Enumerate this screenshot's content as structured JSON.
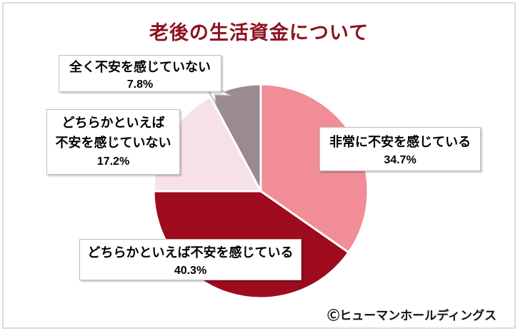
{
  "title": "老後の生活資金について",
  "copyright": "Ⓒヒューマンホールディングス",
  "colors": {
    "title_accent": "#8E1220",
    "box_border": "#BFBFBF",
    "outer_frame": "#DBDBDB",
    "slice_very_anxious": "#F08D96",
    "slice_somewhat_anxious": "#9E0B1E",
    "slice_somewhat_not_anxious": "#F6E1E7",
    "slice_not_anxious_at_all": "#9A8A91"
  },
  "callouts": [
    {
      "lines": [
        "全く不安を感じていない"
      ],
      "pct": "7.8%"
    },
    {
      "lines": [
        "どちらかといえば",
        "不安を感じていない"
      ],
      "pct": "17.2%"
    },
    {
      "lines": [
        "非常に不安を感じている"
      ],
      "pct": "34.7%"
    },
    {
      "lines": [
        "どちらかといえば不安を感じている"
      ],
      "pct": "40.3%"
    }
  ],
  "chart_data": {
    "type": "pie",
    "title": "老後の生活資金について",
    "categories": [
      "非常に不安を感じている",
      "どちらかといえば不安を感じている",
      "どちらかといえば不安を感じていない",
      "全く不安を感じていない"
    ],
    "values": [
      34.7,
      40.3,
      17.2,
      7.8
    ],
    "unit": "%",
    "colors": [
      "#F08D96",
      "#9E0B1E",
      "#F6E1E7",
      "#9A8A91"
    ],
    "start_angle_deg": 0,
    "direction": "clockwise",
    "legend_position": "none",
    "labels": "callout boxes with category name and percentage",
    "source_note": "Ⓒヒューマンホールディングス"
  }
}
